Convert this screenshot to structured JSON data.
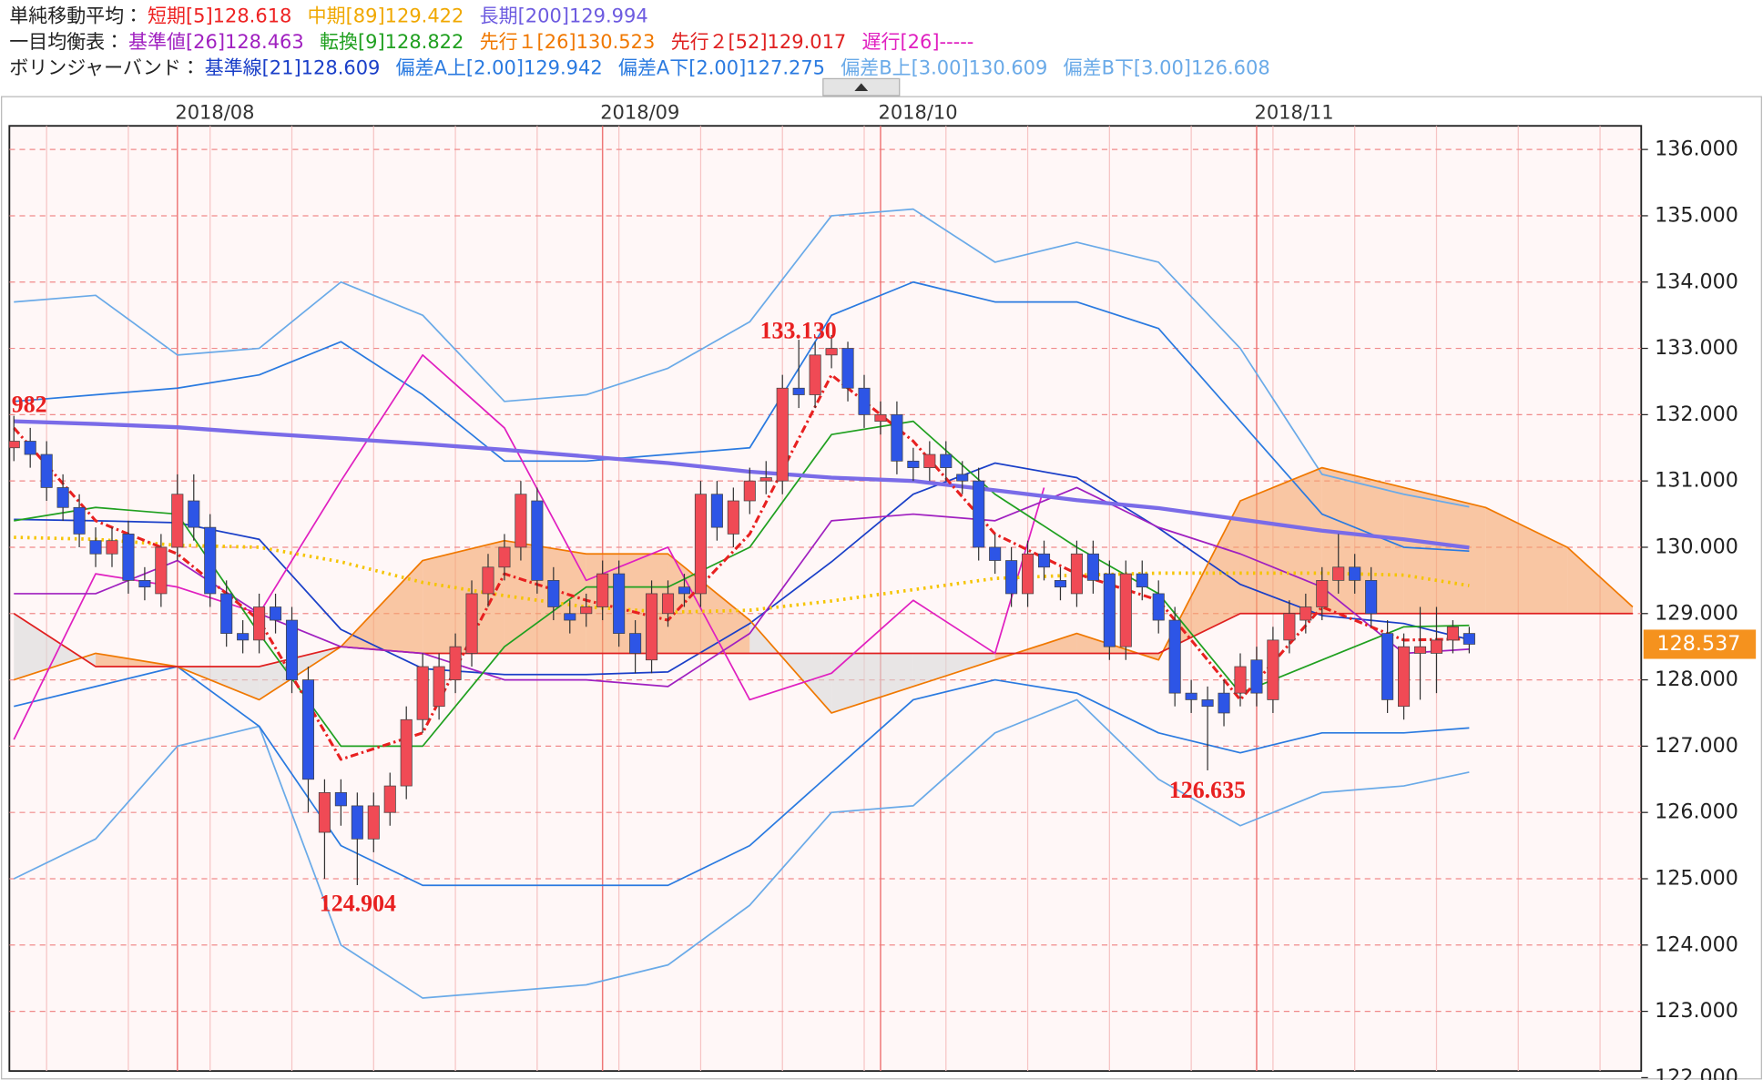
{
  "header": [
    {
      "title": "単純移動平均：",
      "items": [
        {
          "label": "短期[5]",
          "value": "128.618",
          "color": "#ee2222"
        },
        {
          "label": "中期[89]",
          "value": "129.422",
          "color": "#f0a800"
        },
        {
          "label": "長期[200]",
          "value": "129.994",
          "color": "#6d5be0"
        }
      ]
    },
    {
      "title": "一目均衡表：",
      "items": [
        {
          "label": "基準値[26]",
          "value": "128.463",
          "color": "#a020c0"
        },
        {
          "label": "転換[9]",
          "value": "128.822",
          "color": "#20a020"
        },
        {
          "label": "先行１[26]",
          "value": "130.523",
          "color": "#f07800"
        },
        {
          "label": "先行２[52]",
          "value": "129.017",
          "color": "#e02020"
        },
        {
          "label": "遅行[26]",
          "value": "-----",
          "color": "#e020c0"
        }
      ]
    },
    {
      "title": "ボリンジャーバンド：",
      "items": [
        {
          "label": "基準線[21]",
          "value": "128.609",
          "color": "#1a3fc8"
        },
        {
          "label": "偏差A上[2.00]",
          "value": "129.942",
          "color": "#2a7ae0"
        },
        {
          "label": "偏差A下[2.00]",
          "value": "127.275",
          "color": "#2a7ae0"
        },
        {
          "label": "偏差B上[3.00]",
          "value": "130.609",
          "color": "#6aaae8"
        },
        {
          "label": "偏差B下[3.00]",
          "value": "126.608",
          "color": "#6aaae8"
        }
      ]
    }
  ],
  "chart_data": {
    "type": "candlestick",
    "categories": [
      null,
      null,
      null,
      null,
      null,
      null,
      null,
      null,
      null,
      null,
      "2018/08",
      null,
      null,
      null,
      null,
      null,
      null,
      null,
      null,
      null,
      null,
      null,
      null,
      null,
      null,
      null,
      null,
      null,
      null,
      null,
      null,
      null,
      null,
      null,
      null,
      null,
      "2018/09",
      null,
      null,
      null,
      null,
      null,
      null,
      null,
      null,
      null,
      null,
      null,
      null,
      null,
      null,
      null,
      null,
      "2018/10",
      null,
      null,
      null,
      null,
      null,
      null,
      null,
      null,
      null,
      null,
      null,
      null,
      null,
      null,
      null,
      null,
      null,
      null,
      null,
      null,
      null,
      null,
      "2018/11",
      null,
      null,
      null,
      null,
      null,
      null,
      null,
      null,
      null,
      null,
      null,
      null,
      null
    ],
    "open": [
      131.5,
      131.6,
      131.4,
      130.9,
      130.6,
      130.1,
      129.9,
      130.2,
      129.5,
      129.3,
      130.0,
      130.7,
      130.3,
      129.3,
      128.7,
      128.6,
      129.1,
      128.9,
      128.0,
      125.7,
      126.3,
      126.1,
      125.6,
      126.0,
      126.4,
      127.4,
      127.6,
      128.0,
      128.4,
      129.3,
      129.7,
      130.0,
      130.7,
      129.5,
      129.0,
      129.0,
      129.1,
      129.6,
      128.7,
      128.3,
      129.0,
      129.4,
      129.3,
      130.8,
      130.2,
      130.7,
      131.0,
      131.0,
      132.4,
      132.3,
      132.9,
      133.0,
      132.4,
      131.9,
      132.0,
      131.3,
      131.2,
      131.4,
      131.1,
      131.0,
      130.0,
      129.8,
      129.3,
      129.9,
      129.5,
      129.3,
      129.9,
      129.6,
      128.5,
      129.6,
      129.3,
      128.9,
      127.8,
      127.7,
      127.8,
      127.8,
      128.3,
      127.7,
      128.6,
      128.9,
      129.1,
      129.5,
      129.7,
      129.5,
      128.7,
      127.6,
      128.4,
      128.4,
      128.6,
      128.7
    ],
    "high": [
      131.982,
      131.8,
      131.6,
      131.1,
      130.8,
      130.3,
      130.3,
      130.4,
      129.7,
      130.2,
      131.1,
      131.1,
      130.5,
      129.5,
      128.9,
      129.3,
      129.3,
      129.1,
      128.2,
      126.5,
      126.5,
      126.3,
      126.3,
      126.6,
      127.6,
      128.4,
      128.4,
      128.7,
      129.5,
      129.9,
      130.2,
      131.0,
      130.9,
      129.7,
      129.2,
      129.3,
      129.8,
      129.8,
      128.9,
      129.5,
      129.5,
      129.6,
      131.0,
      131.0,
      130.9,
      131.2,
      131.3,
      132.6,
      133.13,
      133.1,
      133.2,
      133.1,
      132.6,
      132.2,
      132.2,
      131.5,
      131.6,
      131.6,
      131.3,
      131.2,
      130.2,
      130.0,
      130.1,
      130.1,
      129.7,
      130.1,
      130.1,
      129.8,
      129.8,
      129.8,
      129.5,
      129.1,
      128.0,
      127.9,
      128.0,
      128.4,
      128.5,
      128.8,
      129.2,
      129.3,
      129.7,
      130.2,
      129.9,
      129.7,
      128.9,
      128.7,
      129.1,
      129.1,
      128.9,
      128.8
    ],
    "low": [
      131.3,
      131.2,
      130.7,
      130.4,
      130.0,
      129.7,
      129.7,
      129.3,
      129.2,
      129.1,
      129.8,
      130.1,
      129.1,
      128.5,
      128.4,
      128.4,
      128.7,
      127.8,
      126.0,
      125.0,
      125.8,
      124.904,
      125.4,
      125.8,
      126.2,
      127.2,
      127.4,
      127.8,
      128.2,
      129.1,
      129.5,
      129.8,
      129.3,
      128.9,
      128.7,
      128.8,
      128.9,
      128.5,
      128.1,
      128.1,
      128.8,
      129.1,
      129.1,
      130.1,
      130.0,
      130.5,
      130.8,
      130.8,
      132.1,
      132.1,
      132.7,
      132.2,
      131.8,
      131.7,
      131.1,
      131.0,
      131.0,
      131.0,
      130.8,
      129.8,
      129.6,
      129.1,
      129.1,
      129.5,
      129.2,
      129.1,
      129.3,
      128.3,
      128.3,
      129.2,
      128.7,
      127.6,
      127.5,
      126.635,
      127.3,
      127.6,
      127.6,
      127.5,
      128.4,
      128.7,
      128.9,
      129.3,
      129.3,
      128.8,
      127.5,
      127.4,
      127.7,
      127.8,
      128.4,
      128.4
    ],
    "close": [
      131.6,
      131.4,
      130.9,
      130.6,
      130.2,
      129.9,
      130.1,
      129.5,
      129.4,
      130.0,
      130.8,
      130.3,
      129.3,
      128.7,
      128.6,
      129.1,
      128.9,
      128.0,
      126.5,
      126.3,
      126.1,
      125.6,
      126.1,
      126.4,
      127.4,
      128.2,
      128.2,
      128.5,
      129.3,
      129.7,
      130.0,
      130.8,
      129.5,
      129.1,
      128.9,
      129.1,
      129.6,
      128.7,
      128.4,
      129.3,
      129.3,
      129.3,
      130.8,
      130.3,
      130.7,
      131.0,
      131.05,
      132.4,
      132.3,
      132.9,
      133.0,
      132.4,
      132.0,
      132.0,
      131.3,
      131.2,
      131.4,
      131.2,
      131.0,
      130.0,
      129.8,
      129.3,
      129.9,
      129.7,
      129.4,
      129.9,
      129.5,
      128.5,
      129.6,
      129.4,
      128.9,
      127.8,
      127.7,
      127.6,
      127.5,
      128.2,
      127.8,
      128.6,
      129.0,
      129.1,
      129.5,
      129.7,
      129.5,
      129.0,
      127.7,
      128.5,
      128.5,
      128.6,
      128.8,
      128.537
    ],
    "up_color": "#f04a55",
    "down_color": "#2d55e6",
    "ylim": [
      122.1,
      136.356
    ],
    "yticks": [
      {
        "value": 122,
        "label": "122.000"
      },
      {
        "value": 123,
        "label": "123.000"
      },
      {
        "value": 124,
        "label": "124.000"
      },
      {
        "value": 125,
        "label": "125.000"
      },
      {
        "value": 126,
        "label": "126.000"
      },
      {
        "value": 127,
        "label": "127.000"
      },
      {
        "value": 128,
        "label": "128.000"
      },
      {
        "value": 129,
        "label": "129.000"
      },
      {
        "value": 130,
        "label": "130.000"
      },
      {
        "value": 131,
        "label": "131.000"
      },
      {
        "value": 132,
        "label": "132.000"
      },
      {
        "value": 133,
        "label": "133.000"
      },
      {
        "value": 134,
        "label": "134.000"
      },
      {
        "value": 135,
        "label": "135.000"
      },
      {
        "value": 136,
        "label": "136.000"
      }
    ],
    "grid": true,
    "overlays": [
      {
        "color": "#6aaae8",
        "style": "solid",
        "width": 1.4,
        "x": [
          0,
          5,
          10,
          15,
          20,
          25,
          30,
          35,
          40,
          45,
          50,
          55,
          60,
          65,
          70,
          75,
          80,
          85,
          89
        ],
        "values": [
          133.7,
          133.8,
          132.9,
          133.0,
          134.0,
          133.5,
          132.2,
          132.3,
          132.7,
          133.4,
          135.0,
          135.1,
          134.3,
          134.6,
          134.3,
          133.0,
          131.1,
          130.8,
          130.609
        ]
      },
      {
        "color": "#6aaae8",
        "style": "solid",
        "width": 1.4,
        "x": [
          0,
          5,
          10,
          15,
          20,
          25,
          30,
          35,
          40,
          45,
          50,
          55,
          60,
          65,
          70,
          75,
          80,
          85,
          89
        ],
        "values": [
          125.0,
          125.6,
          127.0,
          127.3,
          124.0,
          123.2,
          123.3,
          123.4,
          123.7,
          124.6,
          126.0,
          126.1,
          127.2,
          127.7,
          126.5,
          125.8,
          126.3,
          126.4,
          126.608
        ]
      },
      {
        "color": "#2a7ae0",
        "style": "solid",
        "width": 1.4,
        "x": [
          0,
          5,
          10,
          15,
          20,
          25,
          30,
          35,
          40,
          45,
          50,
          55,
          60,
          65,
          70,
          75,
          80,
          85,
          89
        ],
        "values": [
          132.2,
          132.3,
          132.4,
          132.6,
          133.1,
          132.3,
          131.3,
          131.3,
          131.4,
          131.5,
          133.5,
          134.0,
          133.7,
          133.7,
          133.3,
          131.9,
          130.5,
          130.0,
          129.942
        ]
      },
      {
        "color": "#2a7ae0",
        "style": "solid",
        "width": 1.4,
        "x": [
          0,
          5,
          10,
          15,
          20,
          25,
          30,
          35,
          40,
          45,
          50,
          55,
          60,
          65,
          70,
          75,
          80,
          85,
          89
        ],
        "values": [
          127.6,
          127.9,
          128.2,
          127.3,
          125.5,
          124.9,
          124.9,
          124.9,
          124.9,
          125.5,
          126.6,
          127.7,
          128.0,
          127.8,
          127.2,
          126.9,
          127.2,
          127.2,
          127.275
        ]
      },
      {
        "color": "#1a3fc8",
        "style": "solid",
        "width": 1.4,
        "x": [
          0,
          5,
          10,
          15,
          20,
          25,
          30,
          35,
          40,
          45,
          50,
          55,
          60,
          65,
          70,
          75,
          80,
          85,
          89
        ],
        "values": [
          130.42,
          130.4,
          130.37,
          130.12,
          128.76,
          128.17,
          128.08,
          128.08,
          128.12,
          128.85,
          129.78,
          130.8,
          131.27,
          131.05,
          130.29,
          129.44,
          128.97,
          128.85,
          128.609
        ]
      },
      {
        "color": "#f07800",
        "style": "solid",
        "width": 1.4,
        "x": [
          0,
          5,
          10,
          15,
          20,
          25,
          30,
          35,
          40,
          45,
          50,
          55,
          60,
          65,
          70,
          75,
          80,
          85,
          90,
          95,
          99
        ],
        "values": [
          128.0,
          128.4,
          128.2,
          127.7,
          128.5,
          129.8,
          130.1,
          129.9,
          129.9,
          128.9,
          127.5,
          127.9,
          128.3,
          128.7,
          128.3,
          130.7,
          131.2,
          130.9,
          130.6,
          130.0,
          129.1
        ]
      },
      {
        "color": "#e02020",
        "style": "solid",
        "width": 1.4,
        "x": [
          0,
          5,
          10,
          15,
          20,
          25,
          30,
          35,
          40,
          45,
          50,
          55,
          60,
          65,
          70,
          75,
          80,
          85,
          90,
          95,
          99
        ],
        "values": [
          129.0,
          128.2,
          128.2,
          128.2,
          128.5,
          128.4,
          128.4,
          128.4,
          128.4,
          128.4,
          128.4,
          128.4,
          128.4,
          128.4,
          128.4,
          129.0,
          129.0,
          129.0,
          129.0,
          129.0,
          129.0
        ]
      },
      {
        "color": "#e020c0",
        "style": "solid",
        "width": 1.4,
        "x": [
          0,
          5,
          10,
          15,
          20,
          25,
          30,
          35,
          40,
          45,
          50,
          55,
          60,
          63
        ],
        "values": [
          127.1,
          129.6,
          129.4,
          129.0,
          131.0,
          132.9,
          131.8,
          129.5,
          130.0,
          127.7,
          128.1,
          129.2,
          128.4,
          130.9
        ]
      },
      {
        "color": "#a020c0",
        "style": "solid",
        "width": 1.4,
        "x": [
          0,
          5,
          10,
          15,
          20,
          25,
          30,
          35,
          40,
          45,
          50,
          55,
          60,
          65,
          70,
          75,
          80,
          85,
          89
        ],
        "values": [
          129.3,
          129.3,
          129.8,
          129.0,
          128.5,
          128.4,
          128.0,
          128.0,
          127.9,
          128.7,
          130.4,
          130.5,
          130.4,
          130.9,
          130.3,
          129.9,
          129.4,
          128.4,
          128.463
        ]
      },
      {
        "color": "#20a020",
        "style": "solid",
        "width": 1.4,
        "x": [
          0,
          5,
          10,
          15,
          20,
          25,
          30,
          35,
          40,
          45,
          50,
          55,
          60,
          65,
          70,
          75,
          80,
          85,
          89
        ],
        "values": [
          130.4,
          130.6,
          130.5,
          128.7,
          127.0,
          127.0,
          128.5,
          129.4,
          129.4,
          130.0,
          131.7,
          131.9,
          130.8,
          130.0,
          129.3,
          127.8,
          128.3,
          128.8,
          128.822
        ]
      },
      {
        "color": "#7a6be8",
        "style": "solid",
        "width": 3.5,
        "x": [
          0,
          5,
          10,
          15,
          20,
          25,
          30,
          35,
          40,
          45,
          50,
          55,
          60,
          65,
          70,
          75,
          80,
          85,
          89
        ],
        "values": [
          131.9,
          131.86,
          131.81,
          131.72,
          131.64,
          131.56,
          131.47,
          131.37,
          131.27,
          131.14,
          131.05,
          131.0,
          130.86,
          130.71,
          130.59,
          130.42,
          130.25,
          130.12,
          129.994
        ]
      },
      {
        "color": "#f5c400",
        "style": "dot",
        "width": 3,
        "x": [
          0,
          5,
          10,
          15,
          20,
          25,
          30,
          35,
          40,
          45,
          50,
          55,
          60,
          65,
          70,
          75,
          80,
          85,
          89
        ],
        "values": [
          130.15,
          130.12,
          130.03,
          130.0,
          129.78,
          129.47,
          129.27,
          129.1,
          129.02,
          129.05,
          129.19,
          129.36,
          129.53,
          129.58,
          129.61,
          129.61,
          129.61,
          129.58,
          129.422
        ]
      },
      {
        "color": "#e82020",
        "style": "dashdot",
        "width": 2.5,
        "x": [
          0,
          5,
          10,
          15,
          20,
          25,
          30,
          35,
          40,
          45,
          50,
          55,
          60,
          65,
          70,
          75,
          80,
          85,
          89
        ],
        "values": [
          131.8,
          130.4,
          129.9,
          128.9,
          126.8,
          127.2,
          129.6,
          129.2,
          128.9,
          130.2,
          132.6,
          131.6,
          130.2,
          129.6,
          129.2,
          127.7,
          129.1,
          128.6,
          128.618
        ]
      }
    ],
    "cloud": {
      "between": [
        5,
        6
      ],
      "bull_color": "#f5a56a",
      "bear_color": "#d8d8d8"
    },
    "annotations": [
      {
        "text": "982"
      },
      {
        "text": "133.130"
      },
      {
        "text": "124.904"
      },
      {
        "text": "126.635"
      }
    ],
    "last_price": {
      "value": 128.537,
      "label": "128.537",
      "color": "#f5921e"
    }
  }
}
